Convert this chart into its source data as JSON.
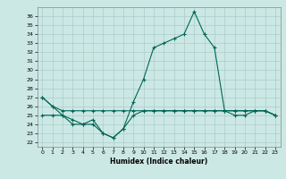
{
  "xlabel": "Humidex (Indice chaleur)",
  "bg_color": "#cce8e4",
  "grid_color": "#aacccc",
  "line_color": "#006655",
  "xlim": [
    -0.5,
    23.5
  ],
  "ylim": [
    21.5,
    37.0
  ],
  "yticks": [
    22,
    23,
    24,
    25,
    26,
    27,
    28,
    29,
    30,
    31,
    32,
    33,
    34,
    35,
    36
  ],
  "xticks": [
    0,
    1,
    2,
    3,
    4,
    5,
    6,
    7,
    8,
    9,
    10,
    11,
    12,
    13,
    14,
    15,
    16,
    17,
    18,
    19,
    20,
    21,
    22,
    23
  ],
  "line1_x": [
    0,
    1,
    2,
    3,
    4,
    5,
    6,
    7,
    8,
    9,
    10,
    11,
    12,
    13,
    14,
    15,
    16,
    17,
    18,
    19,
    20,
    21,
    22,
    23
  ],
  "line1_y": [
    27.0,
    26.0,
    25.5,
    25.5,
    25.5,
    25.5,
    25.5,
    25.5,
    25.5,
    25.5,
    25.5,
    25.5,
    25.5,
    25.5,
    25.5,
    25.5,
    25.5,
    25.5,
    25.5,
    25.5,
    25.5,
    25.5,
    25.5,
    25.0
  ],
  "line2_x": [
    0,
    1,
    2,
    3,
    4,
    5,
    6,
    7,
    8,
    9,
    10,
    11,
    12,
    13,
    14,
    15,
    16,
    17,
    18,
    19,
    20,
    21,
    22,
    23
  ],
  "line2_y": [
    27.0,
    26.0,
    25.0,
    24.0,
    24.0,
    24.5,
    23.0,
    22.5,
    23.5,
    26.5,
    29.0,
    32.5,
    33.0,
    33.5,
    34.0,
    36.5,
    34.0,
    32.5,
    25.5,
    25.0,
    25.0,
    25.5,
    25.5,
    25.0
  ],
  "line3_x": [
    0,
    1,
    2,
    3,
    4,
    5,
    6,
    7,
    8,
    9,
    10,
    11,
    12,
    13,
    14,
    15,
    16,
    17,
    18,
    19,
    20,
    21,
    22,
    23
  ],
  "line3_y": [
    25.0,
    25.0,
    25.0,
    24.5,
    24.0,
    24.0,
    23.0,
    22.5,
    23.5,
    25.0,
    25.5,
    25.5,
    25.5,
    25.5,
    25.5,
    25.5,
    25.5,
    25.5,
    25.5,
    25.5,
    25.5,
    25.5,
    25.5,
    25.0
  ]
}
